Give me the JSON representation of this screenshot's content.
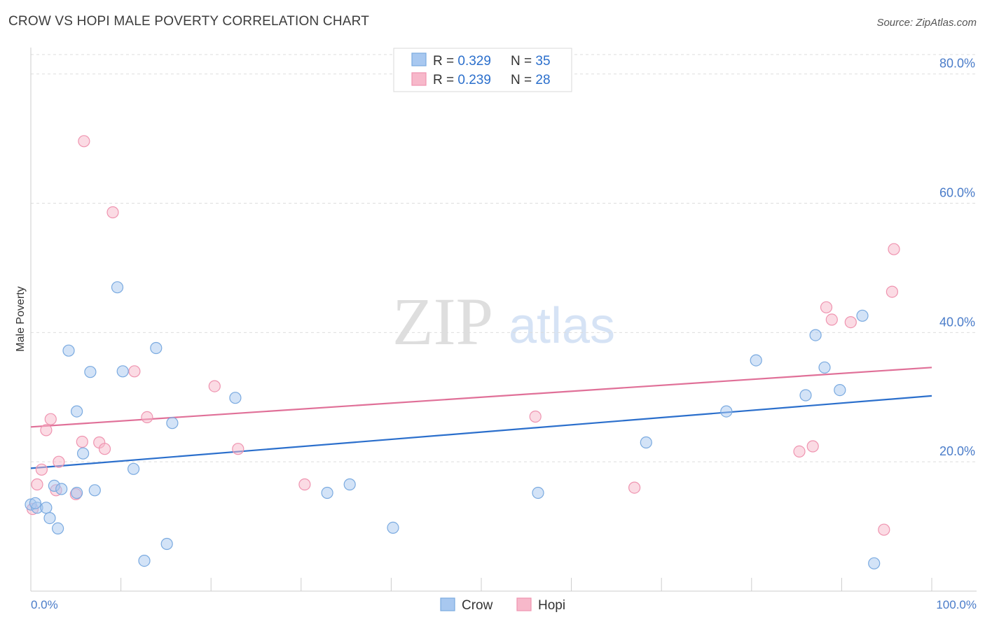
{
  "title": "CROW VS HOPI MALE POVERTY CORRELATION CHART",
  "source": "Source: ZipAtlas.com",
  "watermark": {
    "zip": "ZIP",
    "atlas": "atlas"
  },
  "colors": {
    "crow_fill": "#a8c8f0",
    "crow_stroke": "#7aaae0",
    "crow_line": "#2b6fcc",
    "hopi_fill": "#f7b8ca",
    "hopi_stroke": "#ef94b0",
    "hopi_line": "#e07098",
    "axis_label": "#4a7cc9",
    "grid": "#dddddd"
  },
  "legend": {
    "rows": [
      {
        "series": "crow",
        "r_label": "R = ",
        "r_value": "0.329",
        "n_label": "N = ",
        "n_value": "35"
      },
      {
        "series": "hopi",
        "r_label": "R = ",
        "r_value": "0.239",
        "n_label": "N = ",
        "n_value": "28"
      }
    ]
  },
  "bottom_legend": {
    "crow": "Crow",
    "hopi": "Hopi"
  },
  "chart_data": {
    "type": "scatter",
    "title": "CROW VS HOPI MALE POVERTY CORRELATION CHART",
    "xlabel": "",
    "ylabel": "Male Poverty",
    "xlim": [
      0,
      100
    ],
    "ylim": [
      0,
      83
    ],
    "x_tick_labels": {
      "min": "0.0%",
      "max": "100.0%"
    },
    "y_ticks": [
      20,
      40,
      60,
      80
    ],
    "y_tick_labels": [
      "20.0%",
      "40.0%",
      "60.0%",
      "80.0%"
    ],
    "series": [
      {
        "name": "Crow",
        "trend": {
          "x": [
            0,
            100
          ],
          "y": [
            19.0,
            30.2
          ]
        },
        "points": [
          [
            0.0,
            13.4
          ],
          [
            0.7,
            12.9
          ],
          [
            1.7,
            12.9
          ],
          [
            2.1,
            11.3
          ],
          [
            2.6,
            16.3
          ],
          [
            3.0,
            9.7
          ],
          [
            3.4,
            15.8
          ],
          [
            4.2,
            37.2
          ],
          [
            5.1,
            27.8
          ],
          [
            5.1,
            15.2
          ],
          [
            5.8,
            21.3
          ],
          [
            6.6,
            33.9
          ],
          [
            7.1,
            15.6
          ],
          [
            9.6,
            47.0
          ],
          [
            10.2,
            34.0
          ],
          [
            11.4,
            18.9
          ],
          [
            12.6,
            4.7
          ],
          [
            13.9,
            37.6
          ],
          [
            15.1,
            7.3
          ],
          [
            15.7,
            26.0
          ],
          [
            22.7,
            29.9
          ],
          [
            32.9,
            15.2
          ],
          [
            35.4,
            16.5
          ],
          [
            40.2,
            9.8
          ],
          [
            56.3,
            15.2
          ],
          [
            68.3,
            23.0
          ],
          [
            77.2,
            27.8
          ],
          [
            80.5,
            35.7
          ],
          [
            86.0,
            30.3
          ],
          [
            87.1,
            39.6
          ],
          [
            88.1,
            34.6
          ],
          [
            89.8,
            31.1
          ],
          [
            92.3,
            42.6
          ],
          [
            93.6,
            4.3
          ],
          [
            0.5,
            13.6
          ]
        ]
      },
      {
        "name": "Hopi",
        "trend": {
          "x": [
            0,
            100
          ],
          "y": [
            25.4,
            34.6
          ]
        },
        "points": [
          [
            0.2,
            12.7
          ],
          [
            0.7,
            16.5
          ],
          [
            1.2,
            18.8
          ],
          [
            1.7,
            24.9
          ],
          [
            2.2,
            26.6
          ],
          [
            2.8,
            15.6
          ],
          [
            3.1,
            20.0
          ],
          [
            5.0,
            15.0
          ],
          [
            5.7,
            23.1
          ],
          [
            5.9,
            69.6
          ],
          [
            7.6,
            23.0
          ],
          [
            8.2,
            22.0
          ],
          [
            9.1,
            58.6
          ],
          [
            11.5,
            34.0
          ],
          [
            12.9,
            26.9
          ],
          [
            20.4,
            31.7
          ],
          [
            23.0,
            22.0
          ],
          [
            30.4,
            16.5
          ],
          [
            56.0,
            27.0
          ],
          [
            67.0,
            16.0
          ],
          [
            85.3,
            21.6
          ],
          [
            86.8,
            22.4
          ],
          [
            88.3,
            43.9
          ],
          [
            88.9,
            42.0
          ],
          [
            91.0,
            41.6
          ],
          [
            94.7,
            9.5
          ],
          [
            95.6,
            46.3
          ],
          [
            95.8,
            52.9
          ]
        ]
      }
    ]
  }
}
